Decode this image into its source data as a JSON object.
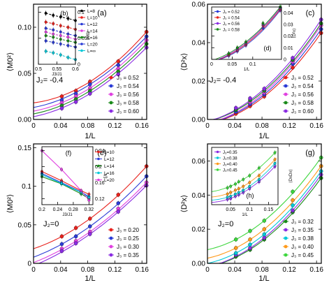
{
  "figure": {
    "shared_xlabel": "1/L"
  },
  "chart_data": [
    {
      "panel": "a",
      "type": "scatter",
      "ylabel": "⟨M0²⟩",
      "xlabel": "",
      "annotation": "J2= -0.4",
      "xlim": [
        0,
        0.167
      ],
      "ylim": [
        0,
        0.125
      ],
      "xticks": [
        "0",
        "0.04",
        "0.08",
        "0.12",
        "0.16"
      ],
      "yticks": [
        "0.00",
        "0.05",
        "0.10"
      ],
      "legend_position": "bottom-right",
      "fit": "quadratic",
      "x": [
        0.0417,
        0.0625,
        0.0833,
        0.125,
        0.1667
      ],
      "series": [
        {
          "name": "J3 = 0.52",
          "color": "#e8211c",
          "intercept": 0.018,
          "values": [
            0.025,
            0.031,
            0.041,
            0.063,
            0.095
          ]
        },
        {
          "name": "J3 = 0.54",
          "color": "#2a3bd6",
          "intercept": 0.013,
          "values": [
            0.021,
            0.028,
            0.038,
            0.059,
            0.09
          ]
        },
        {
          "name": "J3 = 0.56",
          "color": "#e040e0",
          "intercept": 0.009,
          "values": [
            0.018,
            0.025,
            0.034,
            0.055,
            0.086
          ]
        },
        {
          "name": "J3 = 0.58",
          "color": "#1a8a1a",
          "intercept": 0.006,
          "values": [
            0.015,
            0.022,
            0.031,
            0.052,
            0.082
          ]
        },
        {
          "name": "J3 = 0.60",
          "color": "#8a2be2",
          "intercept": 0.003,
          "values": [
            0.012,
            0.019,
            0.028,
            0.049,
            0.078
          ]
        }
      ]
    },
    {
      "panel": "b",
      "type": "line",
      "inset": true,
      "ylabel": "⟨M0⟩",
      "xlabel": "J3/J1",
      "xlim": [
        0.5,
        0.6
      ],
      "ylim": [
        0,
        0.11
      ],
      "xticks": [
        "0.5",
        "0.55",
        "0.6"
      ],
      "yticks": [
        "0",
        "0.05",
        "0.1"
      ],
      "x": [
        0.52,
        0.54,
        0.56,
        0.58,
        0.6
      ],
      "series": [
        {
          "name": "L=8",
          "color": "#000000",
          "values": [
            0.098,
            0.094,
            0.091,
            0.088,
            0.084
          ]
        },
        {
          "name": "L=10",
          "color": "#e8211c",
          "values": [
            0.081,
            0.078,
            0.074,
            0.071,
            0.067
          ]
        },
        {
          "name": "L=12",
          "color": "#2a3bd6",
          "values": [
            0.069,
            0.066,
            0.062,
            0.058,
            0.055
          ]
        },
        {
          "name": "L=14",
          "color": "#e040e0",
          "values": [
            0.062,
            0.058,
            0.055,
            0.052,
            0.048
          ]
        },
        {
          "name": "L=16",
          "color": "#1a8a1a",
          "values": [
            0.055,
            0.052,
            0.048,
            0.045,
            0.042
          ]
        },
        {
          "name": "L=20",
          "color": "#2a3bd6",
          "values": [
            0.045,
            0.042,
            0.039,
            0.036,
            0.033
          ]
        },
        {
          "name": "L=∞",
          "color": "#00c8d8",
          "values": [
            0.025,
            0.022,
            0.018,
            0.013,
            0.009
          ]
        }
      ]
    },
    {
      "panel": "c",
      "type": "scatter",
      "ylabel": "⟨D²x⟩",
      "xlabel": "",
      "annotation": "J2= -0.4",
      "xlim": [
        0,
        0.167
      ],
      "ylim": [
        0,
        0.06
      ],
      "xticks": [
        "0",
        "0.04",
        "0.08",
        "0.12",
        "0.16"
      ],
      "yticks": [
        "0.00",
        "0.02",
        "0.04",
        "0.06"
      ],
      "legend_position": "bottom-right",
      "fit": "quadratic",
      "x": [
        0.0417,
        0.0625,
        0.0833,
        0.125,
        0.1667
      ],
      "series": [
        {
          "name": "J3 = 0.52",
          "color": "#e8211c",
          "intercept": -0.002,
          "values": [
            0.003,
            0.007,
            0.012,
            0.027,
            0.045
          ]
        },
        {
          "name": "J3 = 0.54",
          "color": "#2a3bd6",
          "intercept": -0.002,
          "values": [
            0.004,
            0.008,
            0.013,
            0.029,
            0.047
          ]
        },
        {
          "name": "J3 = 0.56",
          "color": "#e040e0",
          "intercept": -0.002,
          "values": [
            0.005,
            0.009,
            0.014,
            0.03,
            0.049
          ]
        },
        {
          "name": "J3 = 0.58",
          "color": "#1a8a1a",
          "intercept": -0.001,
          "values": [
            0.005,
            0.01,
            0.015,
            0.031,
            0.05
          ]
        },
        {
          "name": "J3 = 0.60",
          "color": "#8a2be2",
          "intercept": -0.001,
          "values": [
            0.006,
            0.011,
            0.016,
            0.032,
            0.052
          ]
        }
      ]
    },
    {
      "panel": "d",
      "type": "scatter",
      "inset": true,
      "ylabel": "⟨D²x⟩",
      "xlabel": "1/L",
      "xlim": [
        0,
        0.17
      ],
      "ylim": [
        0,
        0.045
      ],
      "xticks": [
        "0",
        "0.05",
        "0.1"
      ],
      "yticks": [
        "0",
        "0.01",
        "0.02",
        "0.03",
        "0.04"
      ],
      "fit": "quadratic",
      "x": [
        0.0417,
        0.0625,
        0.0833,
        0.125,
        0.1667
      ],
      "series": [
        {
          "name": "J3 = 0.52",
          "color": "#2a3bd6",
          "intercept": -0.002,
          "values": [
            0.003,
            0.007,
            0.012,
            0.027,
            0.042
          ]
        },
        {
          "name": "J3 = 0.54",
          "color": "#e8211c",
          "intercept": -0.002,
          "values": [
            0.004,
            0.008,
            0.013,
            0.029,
            0.043
          ]
        },
        {
          "name": "J3 = 0.56",
          "color": "#8a2be2",
          "intercept": -0.002,
          "values": [
            0.005,
            0.009,
            0.014,
            0.03,
            0.044
          ]
        },
        {
          "name": "J3 = 0.58",
          "color": "#1a8a1a",
          "intercept": -0.001,
          "values": [
            0.005,
            0.01,
            0.015,
            0.031,
            0.045
          ]
        }
      ]
    },
    {
      "panel": "e",
      "type": "scatter",
      "ylabel": "⟨M0²⟩",
      "xlabel": "1/L",
      "annotation": "J2=0",
      "xlim": [
        0,
        0.167
      ],
      "ylim": [
        0,
        0.155
      ],
      "xticks": [
        "0",
        "0.04",
        "0.08",
        "0.12",
        "0.16"
      ],
      "yticks": [
        "0",
        "0.05",
        "0.1",
        "0.15"
      ],
      "legend_position": "bottom-right",
      "fit": "quadratic",
      "x": [
        0.0417,
        0.0625,
        0.0833,
        0.125,
        0.1667
      ],
      "series": [
        {
          "name": "J3 = 0.20",
          "color": "#e8211c",
          "intercept": 0.019,
          "values": [
            0.035,
            0.046,
            0.058,
            0.089,
            0.126
          ]
        },
        {
          "name": "J3 = 0.25",
          "color": "#2a3bd6",
          "intercept": 0.008,
          "values": [
            0.025,
            0.035,
            0.048,
            0.078,
            0.113
          ]
        },
        {
          "name": "J3 = 0.30",
          "color": "#e040e0",
          "intercept": 0.001,
          "values": [
            0.019,
            0.029,
            0.041,
            0.071,
            0.105
          ]
        },
        {
          "name": "J3 = 0.35",
          "color": "#8a2be2",
          "intercept": -0.003,
          "values": [
            0.016,
            0.026,
            0.038,
            0.067,
            0.101
          ]
        }
      ]
    },
    {
      "panel": "f",
      "type": "line",
      "inset": true,
      "ylabel": "ξ/L",
      "xlabel": "J3/J1",
      "xlim": [
        0.2,
        0.33
      ],
      "ylim": [
        0.105,
        0.25
      ],
      "xticks": [
        "0.2",
        "0.24",
        "0.28",
        "0.32"
      ],
      "yticks": [
        "0.12",
        "0.16",
        "0.2",
        "0.24"
      ],
      "x": [
        0.2,
        0.25,
        0.3,
        0.32
      ],
      "series": [
        {
          "name": "L=10",
          "color": "#e8211c",
          "values": [
            0.188,
            0.165,
            0.14,
            0.131
          ]
        },
        {
          "name": "L=12",
          "color": "#2a3bd6",
          "values": [
            0.183,
            0.16,
            0.137,
            0.125
          ]
        },
        {
          "name": "L=14",
          "color": "#1a8a1a",
          "values": [
            0.175,
            0.157,
            0.132,
            0.12
          ]
        },
        {
          "name": "L=16",
          "color": "#00c8d8",
          "values": [
            0.18,
            0.158,
            0.136,
            0.123
          ]
        },
        {
          "name": "L=20",
          "color": "#e040e0",
          "values": [
            0.24,
            0.193,
            0.14,
            0.116
          ]
        }
      ]
    },
    {
      "panel": "g",
      "type": "scatter",
      "ylabel": "⟨D²x⟩",
      "xlabel": "1/L",
      "annotation": "J2=0",
      "xlim": [
        0,
        0.167
      ],
      "ylim": [
        0,
        0.07
      ],
      "xticks": [
        "0",
        "0.04",
        "0.08",
        "0.12",
        "0.16"
      ],
      "yticks": [
        "0.00",
        "0.02",
        "0.04",
        "0.06"
      ],
      "legend_position": "bottom-right",
      "fit": "quadratic",
      "x": [
        0.0417,
        0.0625,
        0.0833,
        0.125,
        0.1667
      ],
      "series": [
        {
          "name": "J3 = 0.32",
          "color": "#1a8a1a",
          "intercept": -0.002,
          "values": [
            0.004,
            0.008,
            0.014,
            0.03,
            0.05
          ]
        },
        {
          "name": "J3 = 0.35",
          "color": "#8a2be2",
          "intercept": -0.002,
          "values": [
            0.005,
            0.009,
            0.015,
            0.031,
            0.052
          ]
        },
        {
          "name": "J3 = 0.38",
          "color": "#00c8d8",
          "intercept": 0.0,
          "values": [
            0.006,
            0.011,
            0.017,
            0.034,
            0.054
          ]
        },
        {
          "name": "J3 = 0.40",
          "color": "#ff9a1a",
          "intercept": 0.003,
          "values": [
            0.009,
            0.014,
            0.02,
            0.037,
            0.057
          ]
        },
        {
          "name": "J3 = 0.45",
          "color": "#3cd63c",
          "intercept": 0.008,
          "values": [
            0.014,
            0.019,
            0.025,
            0.042,
            0.062
          ]
        }
      ]
    },
    {
      "panel": "h",
      "type": "scatter",
      "inset": true,
      "ylabel": "⟨DxDx⟩",
      "xlabel": "1/L",
      "xlim": [
        0,
        0.175
      ],
      "ylim": [
        0,
        0.075
      ],
      "xticks": [
        "0.05",
        "0.1",
        "0.15"
      ],
      "yticks": [],
      "fit": "quadratic",
      "x": [
        0.0417,
        0.05,
        0.0625,
        0.0714,
        0.0833,
        0.1,
        0.125,
        0.1667
      ],
      "series": [
        {
          "name": "J3=0.35",
          "color": "#8a2be2",
          "intercept": 0.003,
          "values": [
            0.007,
            0.008,
            0.011,
            0.013,
            0.016,
            0.021,
            0.03,
            0.05
          ]
        },
        {
          "name": "J3=0.38",
          "color": "#00c8d8",
          "intercept": 0.006,
          "values": [
            0.01,
            0.011,
            0.014,
            0.016,
            0.019,
            0.024,
            0.033,
            0.054
          ]
        },
        {
          "name": "J3=0.40",
          "color": "#ff9a1a",
          "intercept": 0.01,
          "values": [
            0.014,
            0.016,
            0.019,
            0.021,
            0.024,
            0.029,
            0.038,
            0.059
          ]
        },
        {
          "name": "J3=0.45",
          "color": "#3cd63c",
          "intercept": 0.017,
          "values": [
            0.022,
            0.024,
            0.027,
            0.03,
            0.033,
            0.038,
            0.048,
            0.068
          ]
        }
      ]
    }
  ]
}
